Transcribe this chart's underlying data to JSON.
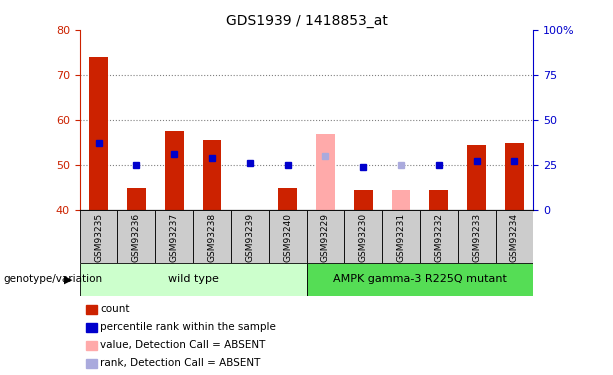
{
  "title": "GDS1939 / 1418853_at",
  "samples": [
    "GSM93235",
    "GSM93236",
    "GSM93237",
    "GSM93238",
    "GSM93239",
    "GSM93240",
    "GSM93229",
    "GSM93230",
    "GSM93231",
    "GSM93232",
    "GSM93233",
    "GSM93234"
  ],
  "red_values": [
    74.0,
    45.0,
    57.5,
    55.5,
    null,
    45.0,
    null,
    44.5,
    null,
    44.5,
    54.5,
    55.0
  ],
  "red_absent": [
    null,
    null,
    null,
    null,
    null,
    null,
    57.0,
    null,
    44.5,
    null,
    null,
    null
  ],
  "blue_values": [
    55.0,
    50.0,
    52.5,
    51.5,
    50.5,
    50.0,
    null,
    49.5,
    null,
    50.0,
    51.0,
    51.0
  ],
  "blue_absent": [
    null,
    null,
    null,
    null,
    null,
    null,
    52.0,
    null,
    50.0,
    null,
    null,
    null
  ],
  "ylim": [
    40,
    80
  ],
  "y_ticks_left": [
    40,
    50,
    60,
    70,
    80
  ],
  "y_ticks_right": [
    0,
    25,
    50,
    75,
    100
  ],
  "dotted_lines": [
    50,
    60,
    70
  ],
  "bar_bottom": 40,
  "wild_type_label": "wild type",
  "mutant_label": "AMPK gamma-3 R225Q mutant",
  "genotype_label": "genotype/variation",
  "color_red": "#cc2200",
  "color_red_absent": "#ffaaaa",
  "color_blue": "#0000cc",
  "color_blue_absent": "#aaaadd",
  "color_light_green": "#ccffcc",
  "color_dark_green": "#55dd55",
  "color_axis_left": "#cc2200",
  "color_axis_right": "#0000cc",
  "legend_items": [
    "count",
    "percentile rank within the sample",
    "value, Detection Call = ABSENT",
    "rank, Detection Call = ABSENT"
  ],
  "legend_colors": [
    "#cc2200",
    "#0000cc",
    "#ffaaaa",
    "#aaaadd"
  ]
}
